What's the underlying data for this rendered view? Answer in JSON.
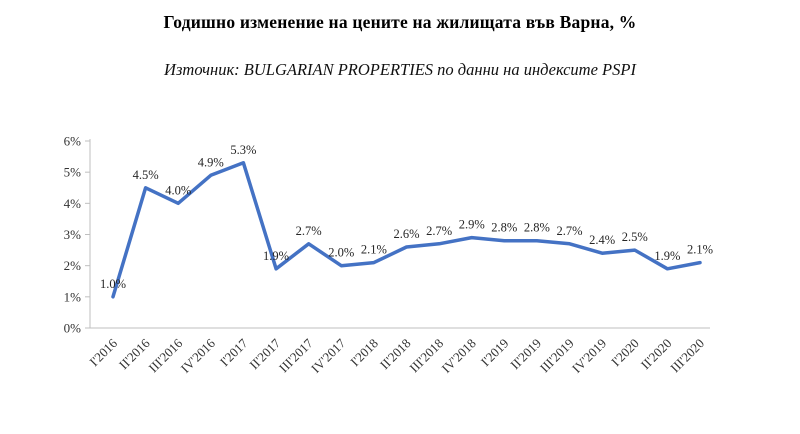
{
  "chart_data": {
    "type": "line",
    "title": "Годишно изменение на цените на жилищата във Варна, %",
    "subtitle": "Източник: BULGARIAN PROPERTIES по данни на индексите PSPI",
    "categories": [
      "I'2016",
      "II'2016",
      "III'2016",
      "IV'2016",
      "I'2017",
      "II'2017",
      "III'2017",
      "IV'2017",
      "I'2018",
      "II'2018",
      "III'2018",
      "IV'2018",
      "I'2019",
      "II'2019",
      "III'2019",
      "IV'2019",
      "I'2020",
      "II'2020",
      "III'2020"
    ],
    "values": [
      1.0,
      4.5,
      4.0,
      4.9,
      5.3,
      1.9,
      2.7,
      2.0,
      2.1,
      2.6,
      2.7,
      2.9,
      2.8,
      2.8,
      2.7,
      2.4,
      2.5,
      1.9,
      2.1
    ],
    "data_labels": [
      "1.0%",
      "4.5%",
      "4.0%",
      "4.9%",
      "5.3%",
      "1.9%",
      "2.7%",
      "2.0%",
      "2.1%",
      "2.6%",
      "2.7%",
      "2.9%",
      "2.8%",
      "2.8%",
      "2.7%",
      "2.4%",
      "2.5%",
      "1.9%",
      "2.1%"
    ],
    "xlabel": "",
    "ylabel": "",
    "ylim": [
      0,
      6
    ],
    "y_ticks": [
      "0%",
      "1%",
      "2%",
      "3%",
      "4%",
      "5%",
      "6%"
    ],
    "grid": false,
    "legend": "none",
    "line_color": "#4472C4",
    "axis_color": "#bfbfbf",
    "tick_label_color": "#333333",
    "data_label_color": "#262626"
  }
}
